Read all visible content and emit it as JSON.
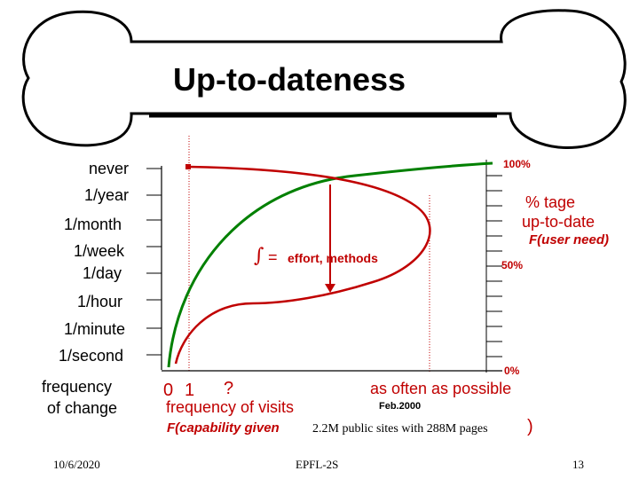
{
  "title": "Up-to-dateness",
  "y_axis_labels": [
    "never",
    "1/year",
    "1/month",
    "1/week",
    "1/day",
    "1/hour",
    "1/minute",
    "1/second"
  ],
  "y_axis_title": [
    "frequency",
    "of change"
  ],
  "right_axis": {
    "top": "100%",
    "mid": "50%",
    "bottom": "0%",
    "title_line1": "% tage",
    "title_line2": "up-to-date",
    "title_line3": "F(user need)"
  },
  "x_axis": {
    "tick_0": "0",
    "tick_1": "1",
    "tick_q": "?",
    "title": "frequency of visits",
    "subtitle": "F(capability given",
    "note": "2.2M public sites with 288M pages",
    "close_paren": ")",
    "right_label": "as often as possible",
    "date_note": "Feb.2000"
  },
  "integral": {
    "symbol": "∫",
    "equals": "=",
    "text": "effort, methods"
  },
  "footer": {
    "date": "10/6/2020",
    "center": "EPFL-2S",
    "page": "13"
  },
  "colors": {
    "red": "#c00000",
    "green": "#008000"
  }
}
